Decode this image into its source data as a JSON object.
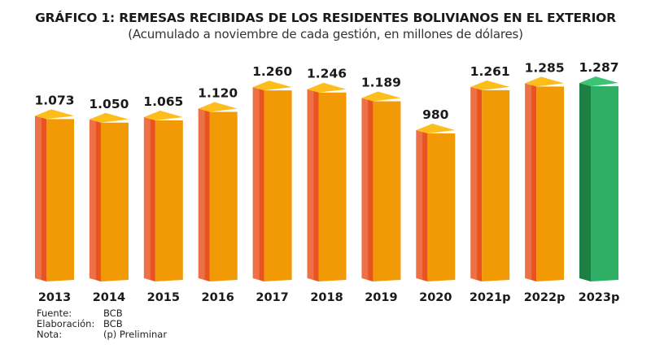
{
  "chart_data": {
    "type": "bar",
    "title": "GRÁFICO 1: REMESAS RECIBIDAS DE LOS RESIDENTES BOLIVIANOS EN EL EXTERIOR",
    "subtitle": "(Acumulado a noviembre de cada gestión, en millones de dólares)",
    "categories": [
      "2013",
      "2014",
      "2015",
      "2016",
      "2017",
      "2018",
      "2019",
      "2020",
      "2021p",
      "2022p",
      "2023p"
    ],
    "values": [
      1073,
      1050,
      1065,
      1120,
      1260,
      1246,
      1189,
      980,
      1261,
      1285,
      1287
    ],
    "value_labels": [
      "1.073",
      "1.050",
      "1.065",
      "1.120",
      "1.260",
      "1.246",
      "1.189",
      "980",
      "1.261",
      "1.285",
      "1.287"
    ],
    "highlight_index": 10,
    "colors": {
      "front": "#F29A05",
      "side": "#E8531F",
      "side_light": "#EE7046",
      "top": "#FDBD1A",
      "highlight_front": "#2FAE66",
      "highlight_side": "#1E7F45",
      "highlight_top": "#3CC475"
    },
    "xlabel": "",
    "ylabel": "",
    "grid": false,
    "legend": "none"
  },
  "notes": [
    {
      "key": "Fuente:",
      "value": "BCB"
    },
    {
      "key": "Elaboración:",
      "value": "BCB"
    },
    {
      "key": "Nota:",
      "value": "(p) Preliminar"
    }
  ]
}
